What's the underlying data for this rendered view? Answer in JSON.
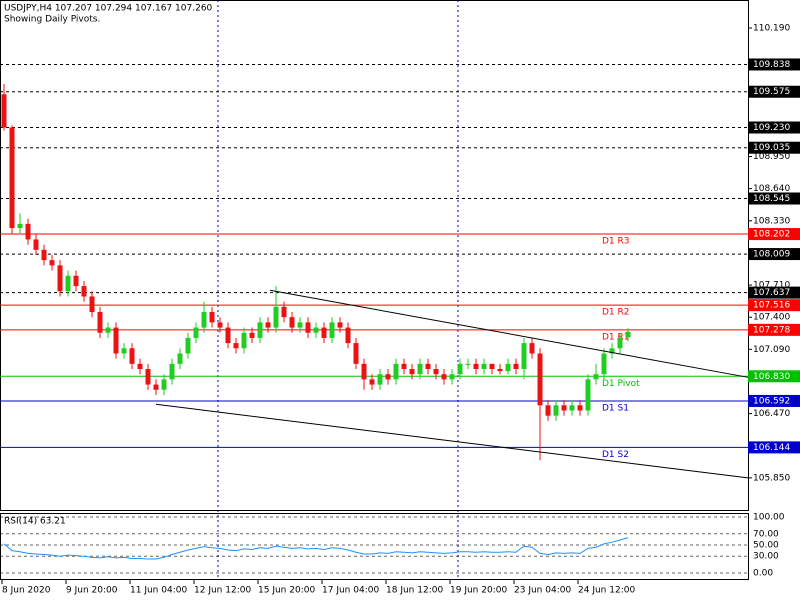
{
  "chart_data": [
    {
      "type": "candlestick",
      "title": "USDJPY,H4 107.207 107.294 107.167 107.260",
      "subtitle": "Showing Daily Pivots.",
      "categories": [
        "8 Jun 2020",
        null,
        null,
        null,
        null,
        null,
        null,
        null,
        "9 Jun 20:00",
        null,
        null,
        null,
        null,
        null,
        null,
        null,
        "11 Jun 04:00",
        null,
        null,
        null,
        null,
        null,
        null,
        null,
        "12 Jun 12:00",
        null,
        null,
        null,
        null,
        null,
        null,
        null,
        "15 Jun 20:00",
        null,
        null,
        null,
        null,
        null,
        null,
        null,
        "17 Jun 04:00",
        null,
        null,
        null,
        null,
        null,
        null,
        null,
        "18 Jun 12:00",
        null,
        null,
        null,
        null,
        null,
        null,
        null,
        "19 Jun 20:00",
        null,
        null,
        null,
        null,
        null,
        null,
        null,
        "23 Jun 04:00",
        null,
        null,
        null,
        null,
        null,
        null,
        null,
        "24 Jun 12:00",
        null,
        null,
        null,
        null,
        null,
        null
      ],
      "open": [
        109.55,
        109.23,
        108.26,
        108.3,
        108.15,
        108.05,
        107.95,
        107.9,
        107.65,
        107.8,
        107.7,
        107.6,
        107.45,
        107.25,
        107.3,
        107.05,
        107.1,
        106.95,
        106.9,
        106.75,
        106.7,
        106.8,
        106.95,
        107.05,
        107.2,
        107.3,
        107.45,
        107.35,
        107.3,
        107.15,
        107.1,
        107.25,
        107.2,
        107.35,
        107.3,
        107.5,
        107.4,
        107.3,
        107.35,
        107.25,
        107.3,
        107.2,
        107.35,
        107.3,
        107.15,
        106.95,
        106.8,
        106.75,
        106.85,
        106.8,
        106.95,
        106.9,
        106.85,
        106.95,
        106.9,
        106.85,
        106.8,
        106.85,
        106.95,
        106.95,
        106.9,
        106.95,
        106.9,
        106.88,
        106.95,
        106.9,
        107.15,
        107.05,
        106.55,
        106.45,
        106.55,
        106.5,
        106.55,
        106.5,
        106.8,
        106.85,
        107.05,
        107.1,
        107.207
      ],
      "high": [
        109.65,
        109.25,
        108.4,
        108.35,
        108.2,
        108.1,
        108.0,
        107.95,
        107.85,
        107.85,
        107.75,
        107.65,
        107.5,
        107.35,
        107.35,
        107.15,
        107.15,
        107.0,
        106.95,
        106.8,
        106.85,
        107.0,
        107.1,
        107.25,
        107.35,
        107.55,
        107.5,
        107.4,
        107.35,
        107.2,
        107.3,
        107.3,
        107.4,
        107.4,
        107.7,
        107.55,
        107.45,
        107.4,
        107.4,
        107.35,
        107.35,
        107.4,
        107.4,
        107.35,
        107.2,
        107.0,
        106.85,
        106.9,
        106.9,
        107.0,
        107.0,
        106.95,
        107.0,
        107.0,
        106.95,
        106.9,
        106.9,
        107.0,
        107.0,
        107.0,
        107.0,
        106.95,
        106.95,
        107.0,
        107.0,
        107.2,
        107.2,
        107.1,
        106.6,
        106.6,
        106.6,
        106.6,
        106.6,
        106.85,
        106.95,
        107.1,
        107.15,
        107.25,
        107.294
      ],
      "low": [
        109.2,
        108.2,
        108.2,
        108.1,
        108.0,
        107.9,
        107.85,
        107.6,
        107.6,
        107.65,
        107.55,
        107.4,
        107.2,
        107.2,
        107.0,
        107.0,
        106.9,
        106.85,
        106.7,
        106.65,
        106.65,
        106.75,
        106.9,
        107.0,
        107.15,
        107.25,
        107.3,
        107.25,
        107.1,
        107.05,
        107.05,
        107.15,
        107.15,
        107.25,
        107.25,
        107.35,
        107.25,
        107.25,
        107.2,
        107.2,
        107.15,
        107.15,
        107.25,
        107.1,
        106.9,
        106.7,
        106.7,
        106.7,
        106.75,
        106.75,
        106.85,
        106.8,
        106.8,
        106.85,
        106.8,
        106.75,
        106.75,
        106.8,
        106.9,
        106.85,
        106.85,
        106.85,
        106.85,
        106.85,
        106.85,
        106.8,
        107.0,
        106.02,
        106.4,
        106.4,
        106.45,
        106.45,
        106.45,
        106.45,
        106.75,
        106.8,
        107.0,
        107.05,
        107.167
      ],
      "close": [
        109.23,
        108.26,
        108.3,
        108.15,
        108.05,
        107.95,
        107.9,
        107.65,
        107.8,
        107.7,
        107.6,
        107.45,
        107.25,
        107.3,
        107.05,
        107.1,
        106.95,
        106.9,
        106.75,
        106.7,
        106.8,
        106.95,
        107.05,
        107.2,
        107.3,
        107.45,
        107.35,
        107.3,
        107.15,
        107.1,
        107.25,
        107.2,
        107.35,
        107.3,
        107.5,
        107.4,
        107.3,
        107.35,
        107.25,
        107.3,
        107.2,
        107.35,
        107.3,
        107.15,
        106.95,
        106.8,
        106.75,
        106.85,
        106.8,
        106.95,
        106.9,
        106.85,
        106.95,
        106.9,
        106.85,
        106.8,
        106.85,
        106.95,
        106.95,
        106.9,
        106.95,
        106.9,
        106.88,
        106.95,
        106.9,
        107.15,
        107.05,
        106.55,
        106.45,
        106.55,
        106.5,
        106.55,
        106.5,
        106.8,
        106.85,
        107.05,
        107.1,
        107.2,
        107.26
      ],
      "up_color": "#22cc22",
      "down_color": "#ee1111",
      "ylim": [
        105.54,
        110.46
      ],
      "yticks": [
        {
          "value": 110.19,
          "label": "110.190"
        },
        {
          "value": 108.95,
          "label": "108.950"
        },
        {
          "value": 108.64,
          "label": "108.640"
        },
        {
          "value": 108.33,
          "label": "108.330"
        },
        {
          "value": 107.71,
          "label": "107.710"
        },
        {
          "value": 107.4,
          "label": "107.400"
        },
        {
          "value": 107.09,
          "label": "107.090"
        },
        {
          "value": 106.47,
          "label": "106.470"
        },
        {
          "value": 105.85,
          "label": "105.850"
        }
      ],
      "levels": [
        {
          "value": 109.838,
          "label": "109.838"
        },
        {
          "value": 109.575,
          "label": "109.575"
        },
        {
          "value": 109.23,
          "label": "109.230"
        },
        {
          "value": 109.035,
          "label": "109.035"
        },
        {
          "value": 108.545,
          "label": "108.545"
        },
        {
          "value": 108.009,
          "label": "108.009"
        },
        {
          "value": 107.637,
          "label": "107.637"
        }
      ],
      "pivots": [
        {
          "name": "D1 R3",
          "value": 108.202,
          "label": "108.202",
          "color": "#ff0000"
        },
        {
          "name": "D1 R2",
          "value": 107.516,
          "label": "107.516",
          "color": "#ff0000"
        },
        {
          "name": "D1 R1",
          "value": 107.278,
          "label": "107.278",
          "color": "#ff0000"
        },
        {
          "name": "D1 Pivot",
          "value": 106.83,
          "label": "106.830",
          "color": "#00c000"
        },
        {
          "name": "D1 S1",
          "value": 106.592,
          "label": "106.592",
          "color": "#0000cd"
        },
        {
          "name": "D1 S2",
          "value": 106.144,
          "label": "106.144",
          "color": "#0000cd"
        }
      ],
      "trendlines": [
        {
          "x": [
            33.25,
            93
          ],
          "y": [
            107.66,
            106.82
          ]
        },
        {
          "x": [
            19,
            93
          ],
          "y": [
            106.56,
            105.85
          ]
        }
      ]
    },
    {
      "type": "line",
      "title": "RSI(14) 63.21",
      "color": "#1e90ff",
      "values": [
        52,
        40,
        38,
        35,
        34,
        33,
        32,
        30,
        32,
        31,
        30,
        28,
        27,
        29,
        27,
        28,
        26,
        26,
        25,
        25,
        28,
        33,
        37,
        41,
        44,
        47,
        45,
        44,
        41,
        40,
        43,
        42,
        45,
        44,
        48,
        46,
        44,
        45,
        43,
        44,
        42,
        45,
        44,
        41,
        37,
        34,
        34,
        36,
        35,
        38,
        37,
        36,
        38,
        37,
        36,
        35,
        36,
        38,
        38,
        37,
        38,
        37,
        37,
        38,
        37,
        48,
        46,
        35,
        33,
        36,
        35,
        36,
        35,
        44,
        46,
        52,
        55,
        59,
        63.21
      ],
      "ylim": [
        0,
        100
      ],
      "yticks": [
        {
          "value": 100,
          "label": "100.00"
        },
        {
          "value": 70,
          "label": "70.00"
        },
        {
          "value": 50,
          "label": "50.00"
        },
        {
          "value": 30,
          "label": "30.00"
        },
        {
          "value": 0,
          "label": "0.00"
        }
      ],
      "grid": true
    }
  ]
}
